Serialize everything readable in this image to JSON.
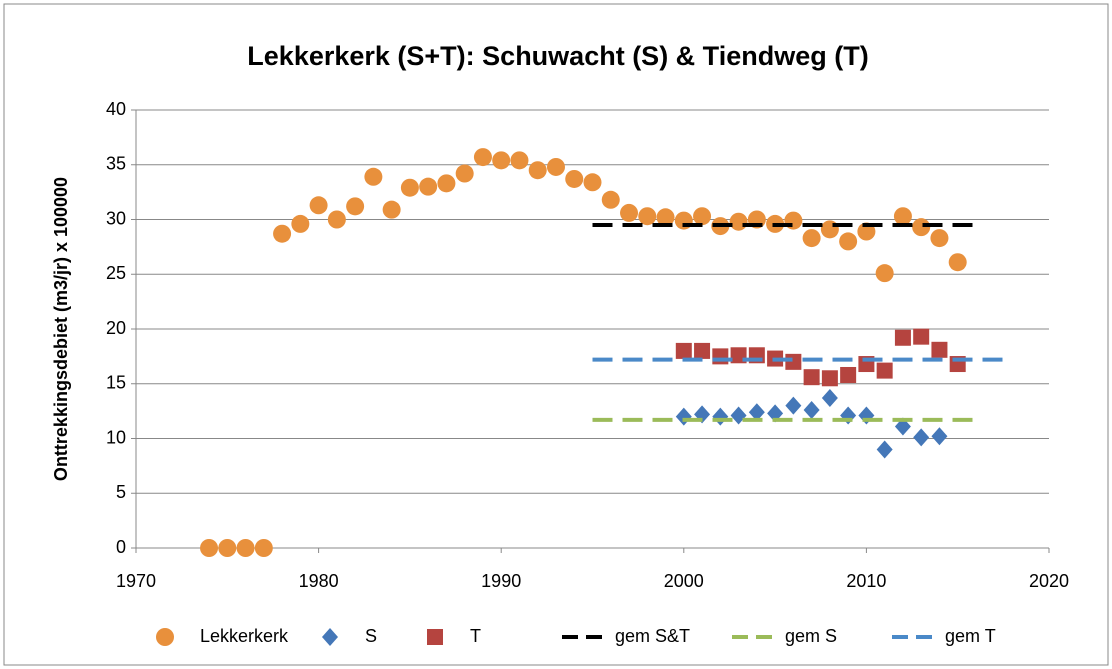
{
  "chart_data": {
    "type": "scatter",
    "title": "Lekkerkerk (S+T): Schuwacht (S) & Tiendweg (T)",
    "y_label": "Onttrekkingsdebiet (m3/jr) x 100000",
    "xlim": [
      1970,
      2020
    ],
    "xticks": [
      1970,
      1980,
      1990,
      2000,
      2010,
      2020
    ],
    "ylim": [
      0,
      40
    ],
    "yticks": [
      0,
      5,
      10,
      15,
      20,
      25,
      30,
      35,
      40
    ],
    "grid": true,
    "legend": "bottom",
    "series": [
      {
        "name": "Lekkerkerk",
        "color": "#e8903c",
        "marker": "circle",
        "x": [
          1974,
          1975,
          1976,
          1977,
          1978,
          1979,
          1980,
          1981,
          1982,
          1983,
          1984,
          1985,
          1986,
          1987,
          1988,
          1989,
          1990,
          1991,
          1992,
          1993,
          1994,
          1995,
          1996,
          1997,
          1998,
          1999,
          2000,
          2001,
          2002,
          2003,
          2004,
          2005,
          2006,
          2007,
          2008,
          2009,
          2010,
          2011,
          2012,
          2013,
          2014,
          2015
        ],
        "values": [
          0,
          0,
          0,
          0,
          28.7,
          29.6,
          31.3,
          30.0,
          31.2,
          33.9,
          30.9,
          32.9,
          33.0,
          33.3,
          34.2,
          35.7,
          35.4,
          35.4,
          34.5,
          34.8,
          33.7,
          33.4,
          31.8,
          30.6,
          30.3,
          30.2,
          29.9,
          30.3,
          29.4,
          29.8,
          30.0,
          29.6,
          29.9,
          28.3,
          29.1,
          28.0,
          28.9,
          25.1,
          30.3,
          29.3,
          28.3,
          26.1
        ]
      },
      {
        "name": "S",
        "color": "#4477b8",
        "marker": "diamond",
        "x": [
          2000,
          2001,
          2002,
          2003,
          2004,
          2005,
          2006,
          2007,
          2008,
          2009,
          2010,
          2011,
          2012,
          2013,
          2014
        ],
        "values": [
          12.0,
          12.2,
          12.0,
          12.1,
          12.4,
          12.3,
          13.0,
          12.6,
          13.7,
          12.1,
          12.1,
          9.0,
          11.1,
          10.1,
          10.2
        ]
      },
      {
        "name": "T",
        "color": "#b5443f",
        "marker": "square",
        "x": [
          2000,
          2001,
          2002,
          2003,
          2004,
          2005,
          2006,
          2007,
          2008,
          2009,
          2010,
          2011,
          2012,
          2013,
          2014,
          2015
        ],
        "values": [
          18.0,
          18.0,
          17.5,
          17.6,
          17.6,
          17.3,
          17.0,
          15.6,
          15.5,
          15.8,
          16.8,
          16.2,
          19.2,
          19.3,
          18.1,
          16.8
        ]
      },
      {
        "name": "gem S&T",
        "color": "#000000",
        "marker": "dash",
        "x": [
          1995,
          2016
        ],
        "values": [
          29.5,
          29.5
        ]
      },
      {
        "name": "gem S",
        "color": "#9bbb59",
        "marker": "dash",
        "x": [
          1995,
          2016
        ],
        "values": [
          11.7,
          11.7
        ]
      },
      {
        "name": "gem T",
        "color": "#4a89c8",
        "marker": "dash",
        "x": [
          1995,
          2018
        ],
        "values": [
          17.2,
          17.2
        ]
      }
    ]
  }
}
